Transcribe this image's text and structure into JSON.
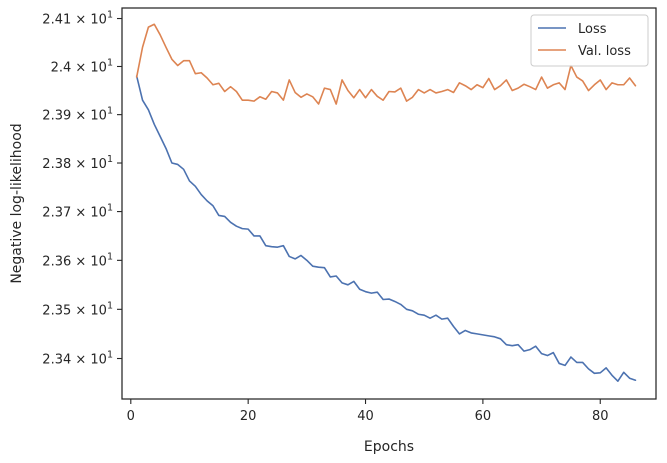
{
  "chart_data": {
    "type": "line",
    "title": "",
    "xlabel": "Epochs",
    "ylabel": "Negative log-likelihood",
    "xlim": [
      -1.5,
      89.5
    ],
    "ylim": [
      23.318,
      24.122
    ],
    "y_scale": "log",
    "grid": false,
    "legend_placement": "top-right",
    "x_ticks": [
      0,
      20,
      40,
      60,
      80
    ],
    "x_tick_labels": [
      "0",
      "20",
      "40",
      "60",
      "80"
    ],
    "y_ticks": [
      23.4,
      23.5,
      23.6,
      23.7,
      23.8,
      23.9,
      24.0,
      24.1
    ],
    "y_tick_labels": [
      {
        "mantissa": "2.34",
        "exp": "1"
      },
      {
        "mantissa": "2.35",
        "exp": "1"
      },
      {
        "mantissa": "2.36",
        "exp": "1"
      },
      {
        "mantissa": "2.37",
        "exp": "1"
      },
      {
        "mantissa": "2.38",
        "exp": "1"
      },
      {
        "mantissa": "2.39",
        "exp": "1"
      },
      {
        "mantissa": "2.4",
        "exp": "1"
      },
      {
        "mantissa": "2.41",
        "exp": "1"
      }
    ],
    "series": [
      {
        "name": "Loss",
        "color": "#4c72b0",
        "x": [
          1,
          2,
          3,
          4,
          5,
          6,
          7,
          8,
          9,
          10,
          11,
          12,
          13,
          14,
          15,
          16,
          17,
          18,
          19,
          20,
          21,
          22,
          23,
          24,
          25,
          26,
          27,
          28,
          29,
          30,
          31,
          32,
          33,
          34,
          35,
          36,
          37,
          38,
          39,
          40,
          41,
          42,
          43,
          44,
          45,
          46,
          47,
          48,
          49,
          50,
          51,
          52,
          53,
          54,
          55,
          56,
          57,
          58,
          59,
          60,
          61,
          62,
          63,
          64,
          65,
          66,
          67,
          68,
          69,
          70,
          71,
          72,
          73,
          74,
          75,
          76,
          77,
          78,
          79,
          80,
          81,
          82,
          83,
          84,
          85,
          86
        ],
        "y": [
          23.98,
          23.93,
          23.91,
          23.88,
          23.855,
          23.83,
          23.8,
          23.797,
          23.787,
          23.763,
          23.752,
          23.735,
          23.722,
          23.712,
          23.692,
          23.69,
          23.678,
          23.67,
          23.665,
          23.664,
          23.65,
          23.65,
          23.63,
          23.628,
          23.627,
          23.63,
          23.608,
          23.603,
          23.61,
          23.6,
          23.588,
          23.586,
          23.585,
          23.566,
          23.568,
          23.554,
          23.55,
          23.557,
          23.541,
          23.536,
          23.533,
          23.535,
          23.52,
          23.521,
          23.516,
          23.51,
          23.5,
          23.497,
          23.49,
          23.488,
          23.482,
          23.488,
          23.48,
          23.482,
          23.465,
          23.45,
          23.457,
          23.452,
          23.45,
          23.448,
          23.446,
          23.444,
          23.44,
          23.428,
          23.426,
          23.428,
          23.415,
          23.418,
          23.425,
          23.41,
          23.406,
          23.412,
          23.39,
          23.386,
          23.403,
          23.392,
          23.392,
          23.379,
          23.37,
          23.371,
          23.381,
          23.366,
          23.354,
          23.372,
          23.36,
          23.356
        ]
      },
      {
        "name": "Val. loss",
        "color": "#dd8452",
        "x": [
          1,
          2,
          3,
          4,
          5,
          6,
          7,
          8,
          9,
          10,
          11,
          12,
          13,
          14,
          15,
          16,
          17,
          18,
          19,
          20,
          21,
          22,
          23,
          24,
          25,
          26,
          27,
          28,
          29,
          30,
          31,
          32,
          33,
          34,
          35,
          36,
          37,
          38,
          39,
          40,
          41,
          42,
          43,
          44,
          45,
          46,
          47,
          48,
          49,
          50,
          51,
          52,
          53,
          54,
          55,
          56,
          57,
          58,
          59,
          60,
          61,
          62,
          63,
          64,
          65,
          66,
          67,
          68,
          69,
          70,
          71,
          72,
          73,
          74,
          75,
          76,
          77,
          78,
          79,
          80,
          81,
          82,
          83,
          84,
          85,
          86
        ],
        "y": [
          23.978,
          24.04,
          24.082,
          24.088,
          24.066,
          24.04,
          24.015,
          24.002,
          24.012,
          24.012,
          23.985,
          23.987,
          23.976,
          23.962,
          23.965,
          23.948,
          23.958,
          23.948,
          23.93,
          23.93,
          23.928,
          23.937,
          23.932,
          23.948,
          23.945,
          23.93,
          23.972,
          23.946,
          23.936,
          23.943,
          23.937,
          23.922,
          23.955,
          23.952,
          23.922,
          23.972,
          23.95,
          23.935,
          23.952,
          23.935,
          23.952,
          23.938,
          23.93,
          23.948,
          23.947,
          23.955,
          23.928,
          23.936,
          23.952,
          23.945,
          23.952,
          23.945,
          23.948,
          23.952,
          23.946,
          23.966,
          23.96,
          23.952,
          23.962,
          23.956,
          23.975,
          23.952,
          23.96,
          23.972,
          23.95,
          23.955,
          23.963,
          23.958,
          23.952,
          23.978,
          23.955,
          23.962,
          23.966,
          23.952,
          24.002,
          23.978,
          23.97,
          23.95,
          23.962,
          23.972,
          23.952,
          23.966,
          23.962,
          23.962,
          23.976,
          23.96
        ]
      }
    ]
  }
}
